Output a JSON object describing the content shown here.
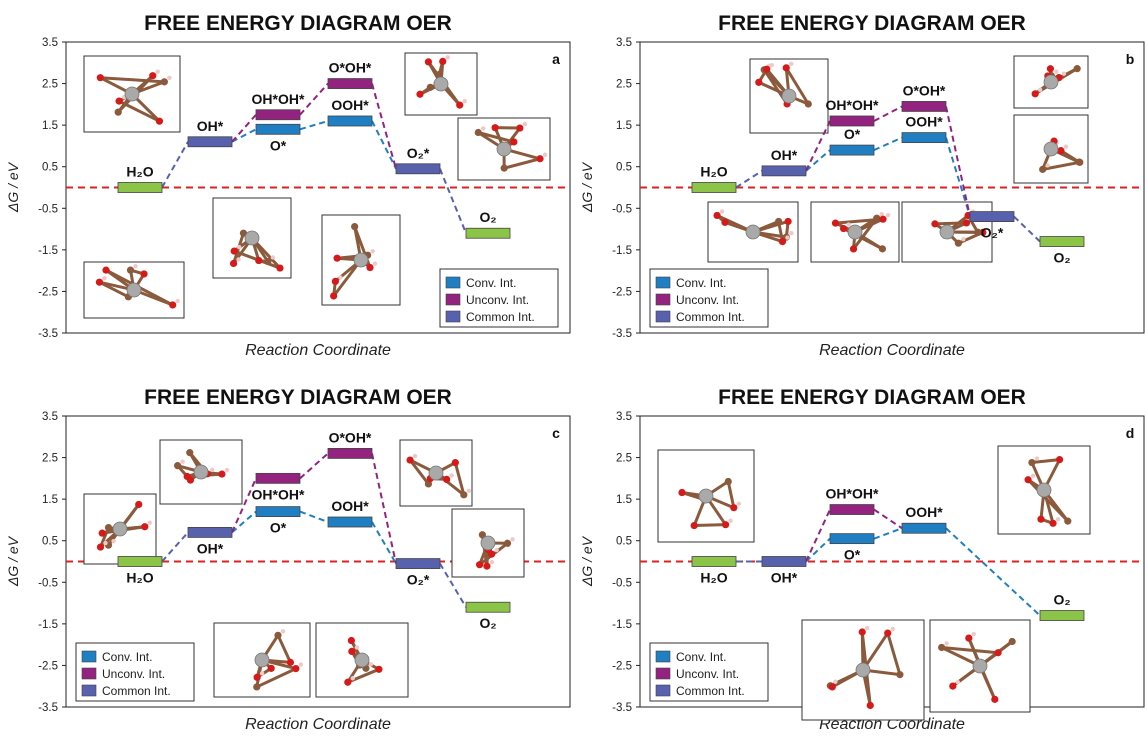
{
  "colors": {
    "conv": "#1f7fc2",
    "unconv": "#93237f",
    "common": "#5861ad",
    "endpoint": "#8cc447",
    "zero_line": "#e02020",
    "molecule_C": "#8b5a3c",
    "molecule_O": "#d61a1a",
    "molecule_metal": "#a9a9a9",
    "molecule_H": "#f0c8c8"
  },
  "chart_data": [
    {
      "type": "free-energy-diagram",
      "title": "FREE ENERGY DIAGRAM OER",
      "panel_label": "a",
      "xlabel": "Reaction Coordinate",
      "ylabel": "ΔG / eV",
      "ylim": [
        -3.5,
        3.5
      ],
      "yticks": [
        "3.5",
        "2.5",
        "1.5",
        "0.5",
        "-0.5",
        "-1.5",
        "-2.5",
        "-3.5"
      ],
      "zero_line": 0,
      "legend": {
        "items": [
          "Conv. Int.",
          "Unconv. Int.",
          "Common Int."
        ],
        "placement": "bottom-right"
      },
      "states": [
        {
          "label": "H₂O",
          "step": 1,
          "energy": 0.0,
          "kind": "endpoint",
          "label_pos": "above"
        },
        {
          "label": "OH*",
          "step": 2,
          "energy": 1.1,
          "kind": "common",
          "label_pos": "above"
        },
        {
          "label": "O*",
          "step": 3,
          "energy": 1.4,
          "kind": "conv",
          "label_pos": "below"
        },
        {
          "label": "OH*OH*",
          "step": 3,
          "energy": 1.75,
          "kind": "unconv",
          "label_pos": "above"
        },
        {
          "label": "OOH*",
          "step": 4,
          "energy": 1.6,
          "kind": "conv",
          "label_pos": "above"
        },
        {
          "label": "O*OH*",
          "step": 4,
          "energy": 2.5,
          "kind": "unconv",
          "label_pos": "above"
        },
        {
          "label": "O₂*",
          "step": 5,
          "energy": 0.45,
          "kind": "common",
          "label_pos": "above"
        },
        {
          "label": "O₂",
          "step": 6,
          "energy": -1.1,
          "kind": "endpoint",
          "label_pos": "above"
        }
      ],
      "links": [
        [
          0,
          1,
          "common"
        ],
        [
          1,
          2,
          "conv"
        ],
        [
          2,
          4,
          "conv"
        ],
        [
          4,
          6,
          "conv"
        ],
        [
          1,
          3,
          "unconv"
        ],
        [
          3,
          5,
          "unconv"
        ],
        [
          5,
          6,
          "unconv"
        ],
        [
          6,
          7,
          "common"
        ]
      ]
    },
    {
      "type": "free-energy-diagram",
      "title": "FREE ENERGY DIAGRAM OER",
      "panel_label": "b",
      "xlabel": "Reaction Coordinate",
      "ylabel": "ΔG / eV",
      "ylim": [
        -3.5,
        3.5
      ],
      "yticks": [
        "3.5",
        "2.5",
        "1.5",
        "0.5",
        "-0.5",
        "-1.5",
        "-2.5",
        "-3.5"
      ],
      "zero_line": 0,
      "legend": {
        "items": [
          "Conv. Int.",
          "Unconv. Int.",
          "Common Int."
        ],
        "placement": "bottom-left"
      },
      "states": [
        {
          "label": "H₂O",
          "step": 1,
          "energy": 0.0,
          "kind": "endpoint",
          "label_pos": "above"
        },
        {
          "label": "OH*",
          "step": 2,
          "energy": 0.4,
          "kind": "common",
          "label_pos": "above"
        },
        {
          "label": "O*",
          "step": 3,
          "energy": 0.9,
          "kind": "conv",
          "label_pos": "above"
        },
        {
          "label": "OH*OH*",
          "step": 3,
          "energy": 1.6,
          "kind": "unconv",
          "label_pos": "above"
        },
        {
          "label": "OOH*",
          "step": 4,
          "energy": 1.2,
          "kind": "conv",
          "label_pos": "above"
        },
        {
          "label": "O*OH*",
          "step": 4,
          "energy": 1.95,
          "kind": "unconv",
          "label_pos": "above"
        },
        {
          "label": "O₂*",
          "step": 5,
          "energy": -0.7,
          "kind": "common",
          "label_pos": "below"
        },
        {
          "label": "O₂",
          "step": 6,
          "energy": -1.3,
          "kind": "endpoint",
          "label_pos": "below"
        }
      ],
      "links": [
        [
          0,
          1,
          "common"
        ],
        [
          1,
          2,
          "conv"
        ],
        [
          2,
          4,
          "conv"
        ],
        [
          4,
          6,
          "conv"
        ],
        [
          1,
          3,
          "unconv"
        ],
        [
          3,
          5,
          "unconv"
        ],
        [
          5,
          6,
          "unconv"
        ],
        [
          6,
          7,
          "common"
        ]
      ]
    },
    {
      "type": "free-energy-diagram",
      "title": "FREE ENERGY DIAGRAM OER",
      "panel_label": "c",
      "xlabel": "Reaction Coordinate",
      "ylabel": "ΔG / eV",
      "ylim": [
        -3.5,
        3.5
      ],
      "yticks": [
        "3.5",
        "2.5",
        "1.5",
        "0.5",
        "-0.5",
        "-1.5",
        "-2.5",
        "-3.5"
      ],
      "zero_line": 0,
      "legend": {
        "items": [
          "Conv. Int.",
          "Unconv. Int.",
          "Common Int."
        ],
        "placement": "bottom-left"
      },
      "states": [
        {
          "label": "H₂O",
          "step": 1,
          "energy": 0.0,
          "kind": "endpoint",
          "label_pos": "below"
        },
        {
          "label": "OH*",
          "step": 2,
          "energy": 0.7,
          "kind": "common",
          "label_pos": "below"
        },
        {
          "label": "O*",
          "step": 3,
          "energy": 1.2,
          "kind": "conv",
          "label_pos": "below"
        },
        {
          "label": "OH*OH*",
          "step": 3,
          "energy": 2.0,
          "kind": "unconv",
          "label_pos": "below"
        },
        {
          "label": "OOH*",
          "step": 4,
          "energy": 0.95,
          "kind": "conv",
          "label_pos": "above"
        },
        {
          "label": "O*OH*",
          "step": 4,
          "energy": 2.6,
          "kind": "unconv",
          "label_pos": "above"
        },
        {
          "label": "O₂*",
          "step": 5,
          "energy": -0.05,
          "kind": "common",
          "label_pos": "below"
        },
        {
          "label": "O₂",
          "step": 6,
          "energy": -1.1,
          "kind": "endpoint",
          "label_pos": "below"
        }
      ],
      "links": [
        [
          0,
          1,
          "common"
        ],
        [
          1,
          2,
          "conv"
        ],
        [
          2,
          4,
          "conv"
        ],
        [
          4,
          6,
          "conv"
        ],
        [
          1,
          3,
          "unconv"
        ],
        [
          3,
          5,
          "unconv"
        ],
        [
          5,
          6,
          "unconv"
        ],
        [
          6,
          7,
          "common"
        ]
      ]
    },
    {
      "type": "free-energy-diagram",
      "title": "FREE ENERGY DIAGRAM OER",
      "panel_label": "d",
      "xlabel": "Reaction Coordinate",
      "ylabel": "ΔG / eV",
      "ylim": [
        -3.5,
        3.5
      ],
      "yticks": [
        "3.5",
        "2.5",
        "1.5",
        "0.5",
        "-0.5",
        "-1.5",
        "-2.5",
        "-3.5"
      ],
      "zero_line": 0,
      "legend": {
        "items": [
          "Conv. Int.",
          "Unconv. Int.",
          "Common Int."
        ],
        "placement": "bottom-left"
      },
      "states": [
        {
          "label": "H₂O",
          "step": 1,
          "energy": 0.0,
          "kind": "endpoint",
          "label_pos": "below"
        },
        {
          "label": "OH*",
          "step": 2,
          "energy": 0.0,
          "kind": "common",
          "label_pos": "below"
        },
        {
          "label": "O*",
          "step": 3,
          "energy": 0.55,
          "kind": "conv",
          "label_pos": "below"
        },
        {
          "label": "OH*OH*",
          "step": 3,
          "energy": 1.25,
          "kind": "unconv",
          "label_pos": "above"
        },
        {
          "label": "OOH*",
          "step": 4,
          "energy": 0.8,
          "kind": "conv",
          "label_pos": "above"
        },
        {
          "label": "O₂",
          "step": 6,
          "energy": -1.3,
          "kind": "endpoint",
          "label_pos": "above"
        }
      ],
      "links": [
        [
          0,
          1,
          "common"
        ],
        [
          1,
          2,
          "conv"
        ],
        [
          2,
          4,
          "conv"
        ],
        [
          1,
          3,
          "unconv"
        ],
        [
          3,
          4,
          "unconv"
        ],
        [
          4,
          5,
          "conv"
        ]
      ]
    }
  ]
}
